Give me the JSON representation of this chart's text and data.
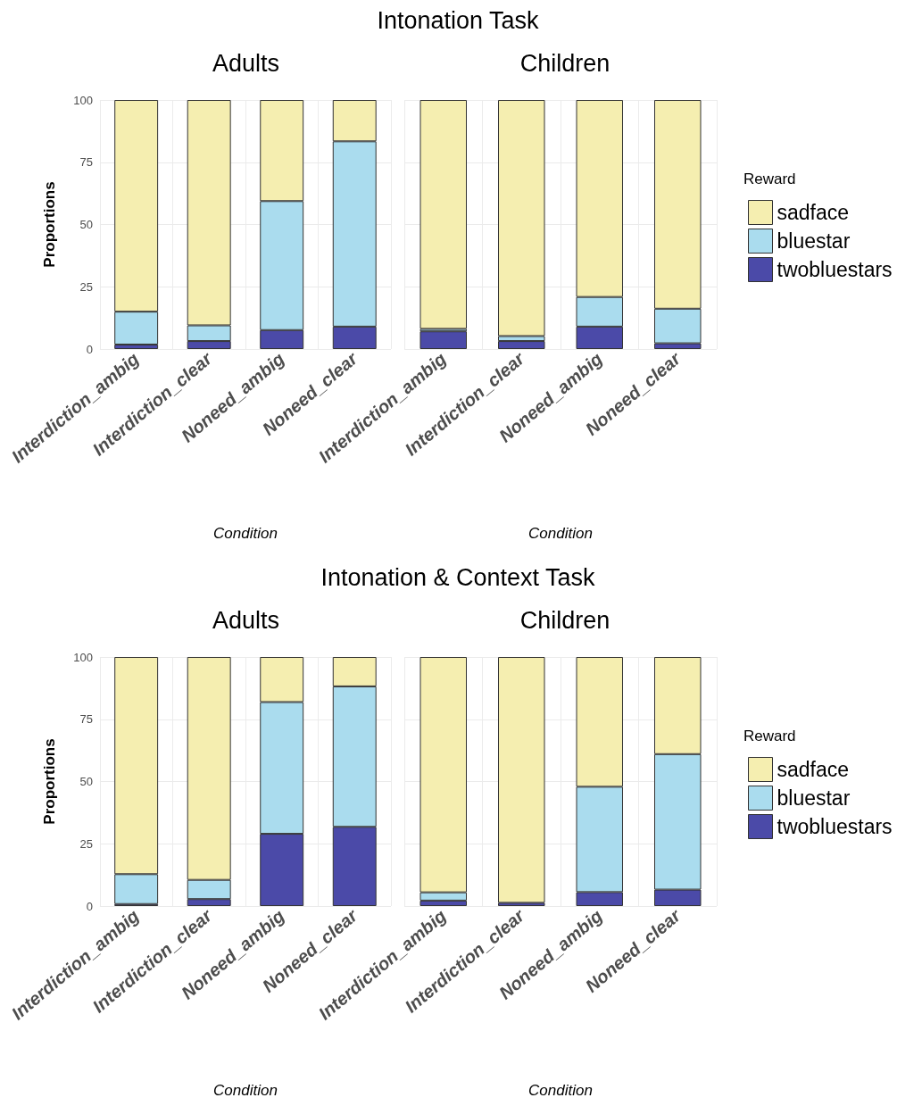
{
  "chart_data": [
    {
      "type": "bar",
      "title": "Adults",
      "annotations": [
        "Intonation Task"
      ],
      "xlabel": "Condition",
      "ylabel": "Proportions",
      "categories": [
        "Interdiction_ambig",
        "Interdiction_clear",
        "Noneed_ambig",
        "Noneed_clear"
      ],
      "stacked": true,
      "ylim": [
        0,
        100
      ],
      "yticks": [
        0,
        25,
        50,
        75,
        100
      ],
      "grid": true,
      "legend": false,
      "series": [
        {
          "color": "#4b4aa8",
          "values": [
            1.8,
            3.2,
            7.6,
            9.0
          ]
        },
        {
          "color": "#aadcee",
          "values": [
            13.2,
            6.3,
            51.8,
            74.4
          ]
        },
        {
          "color": "#f5eeb0",
          "values": [
            85.0,
            90.5,
            40.6,
            16.6
          ]
        }
      ]
    },
    {
      "type": "bar",
      "title": "Children",
      "xlabel": "Condition",
      "categories": [
        "Interdiction_ambig",
        "Interdiction_clear",
        "Noneed_ambig",
        "Noneed_clear"
      ],
      "stacked": true,
      "ylim": [
        0,
        100
      ],
      "yticks": [
        0,
        25,
        50,
        75,
        100
      ],
      "tick_labels": "x",
      "grid": true,
      "legend": "right",
      "legend_title": "Reward",
      "series": [
        {
          "name": "twobluestars",
          "color": "#4b4aa8",
          "values": [
            7.1,
            3.2,
            9.0,
            2.3
          ]
        },
        {
          "name": "bluestar",
          "color": "#aadcee",
          "values": [
            1.0,
            2.0,
            11.9,
            13.9
          ]
        },
        {
          "name": "sadface",
          "color": "#f5eeb0",
          "values": [
            91.9,
            94.8,
            79.1,
            83.8
          ]
        }
      ]
    },
    {
      "type": "bar",
      "title": "Adults",
      "annotations": [
        "Intonation & Context Task"
      ],
      "xlabel": "Condition",
      "ylabel": "Proportions",
      "categories": [
        "Interdiction_ambig",
        "Interdiction_clear",
        "Noneed_ambig",
        "Noneed_clear"
      ],
      "stacked": true,
      "ylim": [
        0,
        100
      ],
      "yticks": [
        0,
        25,
        50,
        75,
        100
      ],
      "grid": true,
      "legend": false,
      "series": [
        {
          "color": "#4b4aa8",
          "values": [
            0.8,
            2.8,
            29.0,
            31.8
          ]
        },
        {
          "color": "#aadcee",
          "values": [
            12.0,
            7.7,
            52.9,
            56.4
          ]
        },
        {
          "color": "#f5eeb0",
          "values": [
            87.2,
            89.5,
            18.1,
            11.8
          ]
        }
      ]
    },
    {
      "type": "bar",
      "title": "Children",
      "xlabel": "Condition",
      "categories": [
        "Interdiction_ambig",
        "Interdiction_clear",
        "Noneed_ambig",
        "Noneed_clear"
      ],
      "stacked": true,
      "ylim": [
        0,
        100
      ],
      "yticks": [
        0,
        25,
        50,
        75,
        100
      ],
      "tick_labels": "x",
      "grid": true,
      "legend": "right",
      "legend_title": "Reward",
      "series": [
        {
          "name": "twobluestars",
          "color": "#4b4aa8",
          "values": [
            2.2,
            1.3,
            5.6,
            6.6
          ]
        },
        {
          "name": "bluestar",
          "color": "#aadcee",
          "values": [
            3.3,
            null,
            42.3,
            54.4
          ]
        },
        {
          "name": "sadface",
          "color": "#f5eeb0",
          "values": [
            94.5,
            98.7,
            52.1,
            39.0
          ]
        }
      ]
    }
  ]
}
